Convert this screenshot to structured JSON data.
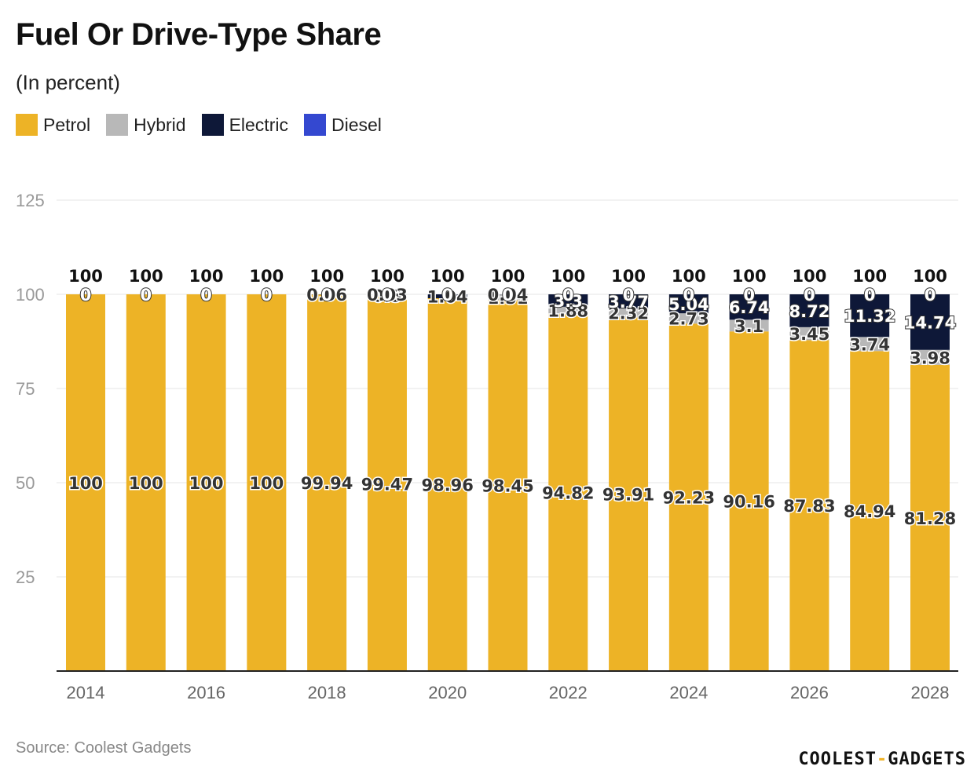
{
  "header": {
    "title": "Fuel Or Drive-Type Share",
    "subtitle": "(In percent)"
  },
  "legend": [
    {
      "label": "Petrol",
      "color": "#EDB326"
    },
    {
      "label": "Hybrid",
      "color": "#B8B8B8"
    },
    {
      "label": "Electric",
      "color": "#0E1838"
    },
    {
      "label": "Diesel",
      "color": "#3448D0"
    }
  ],
  "chart_data": {
    "type": "bar",
    "stacked": true,
    "title": "Fuel Or Drive-Type Share",
    "subtitle": "(In percent)",
    "xlabel": "",
    "ylabel": "",
    "ylim": [
      0,
      125
    ],
    "yticks": [
      25,
      50,
      75,
      100,
      125
    ],
    "categories": [
      "2014",
      "2015",
      "2016",
      "2017",
      "2018",
      "2019",
      "2020",
      "2021",
      "2022",
      "2023",
      "2024",
      "2025",
      "2026",
      "2027",
      "2028"
    ],
    "xtick_labels": [
      "2014",
      "",
      "2016",
      "",
      "2018",
      "",
      "2020",
      "",
      "2022",
      "",
      "2024",
      "",
      "2026",
      "",
      "2028"
    ],
    "totals": [
      100,
      100,
      100,
      100,
      100,
      100,
      100,
      100,
      100,
      100,
      100,
      100,
      100,
      100,
      100
    ],
    "series": [
      {
        "name": "Petrol",
        "color": "#EDB326",
        "values": [
          100,
          100,
          100,
          100,
          99.94,
          99.47,
          98.96,
          98.45,
          94.82,
          93.91,
          92.23,
          90.16,
          87.83,
          84.94,
          81.28
        ]
      },
      {
        "name": "Hybrid",
        "color": "#B8B8B8",
        "values": [
          0,
          0,
          0,
          0,
          0,
          0.5,
          0,
          1.51,
          1.88,
          2.32,
          2.73,
          3.1,
          3.45,
          3.74,
          3.98
        ]
      },
      {
        "name": "Electric",
        "color": "#0E1838",
        "values": [
          0,
          0,
          0,
          0,
          0.06,
          0.03,
          1.04,
          0.04,
          3.3,
          3.77,
          5.04,
          6.74,
          8.72,
          11.32,
          14.74
        ]
      },
      {
        "name": "Diesel",
        "color": "#3448D0",
        "values": [
          0,
          0,
          0,
          0,
          0,
          0,
          0,
          0,
          0,
          0,
          0,
          0,
          0,
          0,
          0
        ]
      }
    ],
    "data_labels": {
      "Petrol": [
        "100",
        "100",
        "100",
        "100",
        "99.94",
        "99.47",
        "98.96",
        "98.45",
        "94.82",
        "93.91",
        "92.23",
        "90.16",
        "87.83",
        "84.94",
        "81.28"
      ],
      "Hybrid": [
        "",
        "",
        "",
        "",
        "",
        "0.5",
        "",
        "1.51",
        "1.88",
        "2.32",
        "2.73",
        "3.1",
        "3.45",
        "3.74",
        "3.98"
      ],
      "Electric": [
        "",
        "",
        "",
        "",
        "0.06",
        "0.03",
        "1.04",
        "0.04",
        "3.3",
        "3.77",
        "5.04",
        "6.74",
        "8.72",
        "11.32",
        "14.74"
      ],
      "Diesel": [
        "0",
        "0",
        "0",
        "0",
        "0",
        "0",
        "0",
        "0",
        "0",
        "0",
        "0",
        "0",
        "0",
        "0",
        "0"
      ]
    }
  },
  "footer": {
    "source": "Source: Coolest Gadgets",
    "brand_left": "COOLEST",
    "brand_dash": "-",
    "brand_right": "GADGETS"
  }
}
